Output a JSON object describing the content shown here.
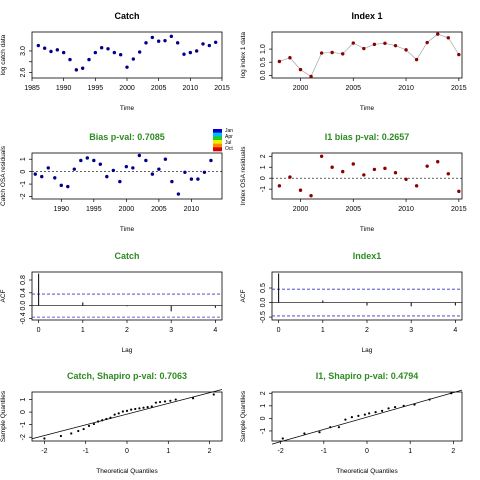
{
  "colors": {
    "green_title": "#2e8b22",
    "black_title": "#000000",
    "dot_blue": "#00008b",
    "dot_red": "#8b0000",
    "ref_blue": "#3333cc",
    "line_grey": "#9a9a9a"
  },
  "legend": {
    "labels": [
      "Jan",
      "Apr",
      "Jul",
      "Oct"
    ],
    "colors": [
      "#0000cc",
      "#00bbff",
      "#22cc22",
      "#eeee00",
      "#ff8800",
      "#dd0000"
    ]
  },
  "chart_data": [
    {
      "id": "catch-ts",
      "type": "line",
      "title": "Catch",
      "title_color": "#000000",
      "xlabel": "Time",
      "ylabel": "log catch data",
      "xlim": [
        1985,
        2015
      ],
      "ylim": [
        2.5,
        3.35
      ],
      "xticks": [
        1985,
        1990,
        1995,
        2000,
        2005,
        2010,
        2015
      ],
      "yticks": [
        2.6,
        2.8,
        3.0
      ],
      "ytick_labels": [
        "2.6",
        "",
        "3.0"
      ],
      "dot_color": "#00008b",
      "line": false,
      "points": [
        [
          1986,
          3.1
        ],
        [
          1987,
          3.05
        ],
        [
          1988,
          2.99
        ],
        [
          1989,
          3.02
        ],
        [
          1990,
          2.97
        ],
        [
          1991,
          2.84
        ],
        [
          1992,
          2.65
        ],
        [
          1993,
          2.68
        ],
        [
          1994,
          2.84
        ],
        [
          1995,
          2.97
        ],
        [
          1996,
          3.06
        ],
        [
          1997,
          3.04
        ],
        [
          1998,
          2.97
        ],
        [
          1999,
          2.93
        ],
        [
          2000,
          2.7
        ],
        [
          2001,
          2.85
        ],
        [
          2002,
          2.98
        ],
        [
          2003,
          3.15
        ],
        [
          2004,
          3.25
        ],
        [
          2005,
          3.18
        ],
        [
          2006,
          3.19
        ],
        [
          2007,
          3.27
        ],
        [
          2008,
          3.15
        ],
        [
          2009,
          2.94
        ],
        [
          2010,
          2.97
        ],
        [
          2011,
          3.0
        ],
        [
          2012,
          3.13
        ],
        [
          2013,
          3.1
        ],
        [
          2014,
          3.16
        ]
      ]
    },
    {
      "id": "index-ts",
      "type": "line",
      "title": "Index 1",
      "title_color": "#000000",
      "xlabel": "Time",
      "ylabel": "log index 1 data",
      "xlim": [
        1997.3,
        2015.3
      ],
      "ylim": [
        -0.1,
        1.65
      ],
      "xticks": [
        2000,
        2005,
        2010,
        2015
      ],
      "yticks": [
        0.0,
        0.5,
        1.0
      ],
      "ytick_labels": [
        "0.0",
        "0.5",
        "1.0"
      ],
      "dot_color": "#8b0000",
      "line": true,
      "points": [
        [
          1998,
          0.53
        ],
        [
          1999,
          0.67
        ],
        [
          2000,
          0.22
        ],
        [
          2001,
          -0.04
        ],
        [
          2002,
          0.85
        ],
        [
          2003,
          0.87
        ],
        [
          2004,
          0.82
        ],
        [
          2005,
          1.23
        ],
        [
          2006,
          1.02
        ],
        [
          2007,
          1.18
        ],
        [
          2008,
          1.22
        ],
        [
          2009,
          1.13
        ],
        [
          2010,
          0.97
        ],
        [
          2011,
          0.6
        ],
        [
          2012,
          1.25
        ],
        [
          2013,
          1.57
        ],
        [
          2014,
          1.43
        ],
        [
          2015,
          0.79
        ]
      ]
    },
    {
      "id": "catch-resid",
      "type": "scatter",
      "title": "Bias p-val: 0.7085",
      "title_color": "#2e8b22",
      "xlabel": "Time",
      "ylabel": "Catch OSA residuals",
      "xlim": [
        1985.5,
        2014.7
      ],
      "ylim": [
        -2.2,
        1.5
      ],
      "xticks": [
        1990,
        1995,
        2000,
        2005,
        2010
      ],
      "yticks": [
        -2,
        -1,
        0,
        1
      ],
      "ytick_labels": [
        "-2",
        "-1",
        "0",
        "1"
      ],
      "dot_color": "#00008b",
      "zero_line": true,
      "points": [
        [
          1986,
          -0.2
        ],
        [
          1987,
          -0.4
        ],
        [
          1988,
          0.3
        ],
        [
          1989,
          -0.5
        ],
        [
          1990,
          -1.1
        ],
        [
          1991,
          -1.2
        ],
        [
          1992,
          0.2
        ],
        [
          1993,
          0.9
        ],
        [
          1994,
          1.1
        ],
        [
          1995,
          0.9
        ],
        [
          1996,
          0.6
        ],
        [
          1997,
          -0.4
        ],
        [
          1998,
          0.1
        ],
        [
          1999,
          -0.8
        ],
        [
          2000,
          0.4
        ],
        [
          2001,
          0.3
        ],
        [
          2002,
          1.3
        ],
        [
          2003,
          0.9
        ],
        [
          2004,
          -0.2
        ],
        [
          2005,
          0.2
        ],
        [
          2006,
          1.0
        ],
        [
          2007,
          -0.8
        ],
        [
          2008,
          -1.8
        ],
        [
          2009,
          -0.05
        ],
        [
          2010,
          -0.6
        ],
        [
          2011,
          -0.6
        ],
        [
          2012,
          -0.05
        ],
        [
          2013,
          0.9
        ]
      ]
    },
    {
      "id": "index-resid",
      "type": "scatter",
      "title": "I1 bias p-val: 0.2657",
      "title_color": "#2e8b22",
      "xlabel": "Time",
      "ylabel": "Index OSA residuals",
      "xlim": [
        1997.3,
        2015.3
      ],
      "ylim": [
        -1.9,
        2.3
      ],
      "xticks": [
        2000,
        2005,
        2010,
        2015
      ],
      "yticks": [
        -1,
        0,
        1,
        2
      ],
      "ytick_labels": [
        "-1",
        "0",
        "1",
        "2"
      ],
      "dot_color": "#8b0000",
      "zero_line": true,
      "points": [
        [
          1998,
          -0.7
        ],
        [
          1999,
          0.1
        ],
        [
          2000,
          -1.1
        ],
        [
          2001,
          -1.6
        ],
        [
          2002,
          2.0
        ],
        [
          2003,
          1.0
        ],
        [
          2004,
          0.6
        ],
        [
          2005,
          1.3
        ],
        [
          2006,
          0.3
        ],
        [
          2007,
          0.8
        ],
        [
          2008,
          0.9
        ],
        [
          2009,
          0.5
        ],
        [
          2010,
          -0.1
        ],
        [
          2011,
          -0.7
        ],
        [
          2012,
          1.1
        ],
        [
          2013,
          1.5
        ],
        [
          2014,
          0.4
        ],
        [
          2015,
          -1.2
        ]
      ]
    },
    {
      "id": "catch-acf",
      "type": "bar",
      "title": "Catch",
      "title_color": "#2e8b22",
      "xlabel": "Lag",
      "ylabel": "ACF",
      "xlim": [
        -0.15,
        4.15
      ],
      "ylim": [
        -0.45,
        1.05
      ],
      "xticks": [
        0,
        1,
        2,
        3,
        4
      ],
      "yticks": [
        -0.4,
        0.0,
        0.4,
        0.8
      ],
      "ytick_labels": [
        "-0.4",
        "0.0",
        "0.4",
        "0.8"
      ],
      "categories": [
        0,
        1,
        2,
        3,
        4
      ],
      "values": [
        1.0,
        0.1,
        -0.02,
        -0.18,
        -0.07
      ],
      "conf_limits": [
        0.36,
        -0.36
      ]
    },
    {
      "id": "index-acf",
      "type": "bar",
      "title": "Index1",
      "title_color": "#2e8b22",
      "xlabel": "Lag",
      "ylabel": "ACF",
      "xlim": [
        -0.15,
        4.15
      ],
      "ylim": [
        -0.6,
        1.05
      ],
      "xticks": [
        0,
        1,
        2,
        3,
        4
      ],
      "yticks": [
        -0.5,
        0.0,
        0.5
      ],
      "ytick_labels": [
        "-0.5",
        "0.0",
        "0.5"
      ],
      "categories": [
        0,
        1,
        2,
        3,
        4
      ],
      "values": [
        1.0,
        0.07,
        -0.1,
        -0.13,
        -0.1
      ],
      "conf_limits": [
        0.46,
        -0.46
      ]
    },
    {
      "id": "catch-qq",
      "type": "scatter",
      "title": "Catch, Shapiro p-val: 0.7063",
      "title_color": "#2e8b22",
      "xlabel": "Theoretical Quantiles",
      "ylabel": "Sample Quantiles",
      "xlim": [
        -2.3,
        2.3
      ],
      "ylim": [
        -2.3,
        1.6
      ],
      "xticks": [
        -2,
        -1,
        0,
        1,
        2
      ],
      "yticks": [
        -2,
        -1,
        0,
        1
      ],
      "ytick_labels": [
        "-2",
        "-1",
        "0",
        "1"
      ],
      "dot_color": "#000000",
      "ref_line": [
        [
          -2.3,
          -2.12
        ],
        [
          2.3,
          1.8
        ]
      ],
      "points": [
        [
          -2.0,
          -2.1
        ],
        [
          -1.6,
          -1.9
        ],
        [
          -1.35,
          -1.7
        ],
        [
          -1.18,
          -1.5
        ],
        [
          -1.05,
          -1.35
        ],
        [
          -0.92,
          -1.1
        ],
        [
          -0.8,
          -0.95
        ],
        [
          -0.7,
          -0.75
        ],
        [
          -0.6,
          -0.65
        ],
        [
          -0.5,
          -0.55
        ],
        [
          -0.4,
          -0.45
        ],
        [
          -0.3,
          -0.2
        ],
        [
          -0.2,
          -0.1
        ],
        [
          -0.1,
          0.05
        ],
        [
          0.0,
          0.1
        ],
        [
          0.1,
          0.2
        ],
        [
          0.2,
          0.25
        ],
        [
          0.3,
          0.3
        ],
        [
          0.4,
          0.35
        ],
        [
          0.5,
          0.4
        ],
        [
          0.6,
          0.45
        ],
        [
          0.7,
          0.75
        ],
        [
          0.8,
          0.8
        ],
        [
          0.92,
          0.85
        ],
        [
          1.05,
          0.9
        ],
        [
          1.18,
          1.0
        ],
        [
          1.6,
          1.1
        ],
        [
          2.1,
          1.4
        ]
      ]
    },
    {
      "id": "index-qq",
      "type": "scatter",
      "title": "I1, Shapiro p-val: 0.4794",
      "title_color": "#2e8b22",
      "xlabel": "Theoretical Quantiles",
      "ylabel": "Sample Quantiles",
      "xlim": [
        -2.2,
        2.2
      ],
      "ylim": [
        -1.8,
        2.1
      ],
      "xticks": [
        -2,
        -1,
        0,
        1,
        2
      ],
      "yticks": [
        -1,
        0,
        1,
        2
      ],
      "ytick_labels": [
        "-1",
        "0",
        "1",
        "2"
      ],
      "dot_color": "#000000",
      "ref_line": [
        [
          -2.2,
          -2.05
        ],
        [
          2.2,
          2.25
        ]
      ],
      "points": [
        [
          -1.95,
          -1.6
        ],
        [
          -1.45,
          -1.2
        ],
        [
          -1.1,
          -1.1
        ],
        [
          -0.85,
          -0.7
        ],
        [
          -0.65,
          -0.7
        ],
        [
          -0.5,
          -0.1
        ],
        [
          -0.35,
          0.1
        ],
        [
          -0.2,
          0.2
        ],
        [
          -0.05,
          0.3
        ],
        [
          0.05,
          0.4
        ],
        [
          0.2,
          0.5
        ],
        [
          0.35,
          0.6
        ],
        [
          0.5,
          0.8
        ],
        [
          0.65,
          0.9
        ],
        [
          0.85,
          1.0
        ],
        [
          1.1,
          1.1
        ],
        [
          1.45,
          1.5
        ],
        [
          1.95,
          2.0
        ]
      ]
    }
  ]
}
